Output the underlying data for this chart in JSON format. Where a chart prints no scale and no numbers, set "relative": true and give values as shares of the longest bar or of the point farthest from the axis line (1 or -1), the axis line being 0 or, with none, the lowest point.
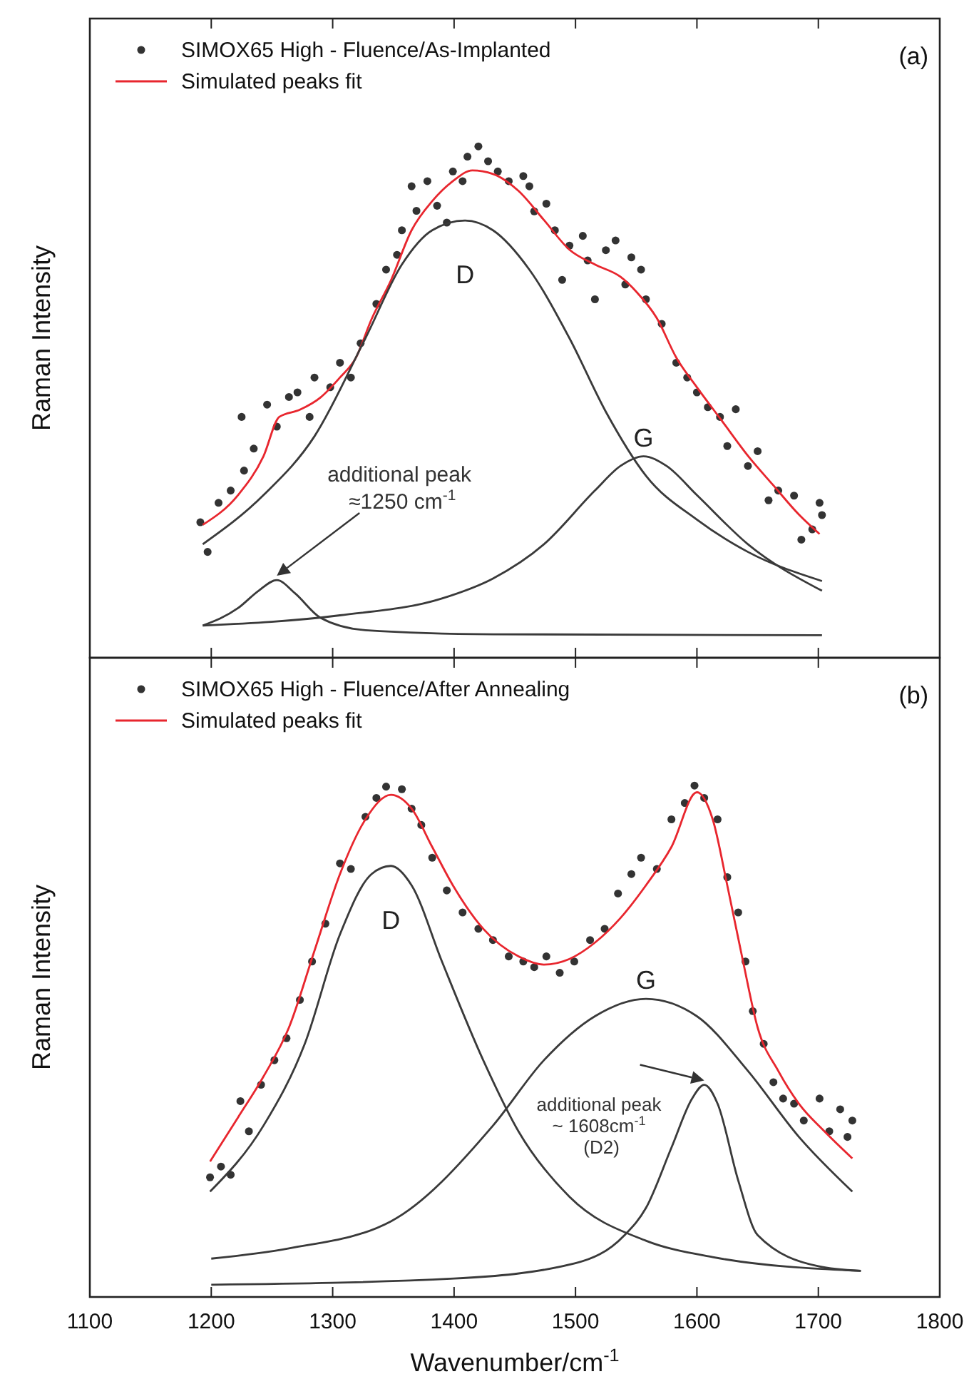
{
  "chart_data": [
    {
      "type": "scatter",
      "ylabel": "Raman Intensity",
      "xlim": [
        1100,
        1800
      ],
      "xticks": [
        1100,
        1200,
        1300,
        1400,
        1500,
        1600,
        1700,
        1800
      ],
      "tick_labels": false,
      "relative": true,
      "legend": "top left",
      "annotations": [
        "(a)",
        "additional peak\n≈1250 cm$^{-1}$"
      ],
      "series": [
        {
          "name": "SIMOX65 High - Fluence/As-Implanted",
          "color": "#333333",
          "marker": "circle",
          "x": [
            1191,
            1197,
            1206,
            1216,
            1225,
            1227,
            1235,
            1246,
            1254,
            1264,
            1271,
            1281,
            1285,
            1298,
            1306,
            1315,
            1323,
            1336,
            1344,
            1353,
            1357,
            1365,
            1369,
            1378,
            1386,
            1394,
            1399,
            1407,
            1411,
            1420,
            1428,
            1436,
            1445,
            1457,
            1462,
            1466,
            1476,
            1483,
            1489,
            1495,
            1506,
            1510,
            1516,
            1525,
            1533,
            1541,
            1546,
            1554,
            1558,
            1571,
            1583,
            1592,
            1600,
            1609,
            1619,
            1625,
            1632,
            1642,
            1650,
            1659,
            1667,
            1680,
            1686,
            1695,
            1701,
            1703
          ],
          "values": [
            0.265,
            0.207,
            0.303,
            0.327,
            0.471,
            0.366,
            0.409,
            0.495,
            0.452,
            0.51,
            0.519,
            0.471,
            0.548,
            0.529,
            0.577,
            0.548,
            0.615,
            0.692,
            0.759,
            0.788,
            0.836,
            0.922,
            0.874,
            0.932,
            0.884,
            0.851,
            0.951,
            0.932,
            0.98,
            1,
            0.971,
            0.951,
            0.932,
            0.942,
            0.922,
            0.873,
            0.888,
            0.836,
            0.739,
            0.806,
            0.825,
            0.777,
            0.701,
            0.797,
            0.816,
            0.73,
            0.783,
            0.759,
            0.701,
            0.653,
            0.577,
            0.548,
            0.519,
            0.49,
            0.471,
            0.414,
            0.486,
            0.375,
            0.404,
            0.308,
            0.327,
            0.317,
            0.231,
            0.251,
            0.303,
            0.279
          ]
        },
        {
          "type": "line",
          "name": "Simulated peaks fit",
          "color": "#e8262e",
          "x": [
            1193,
            1222,
            1243,
            1256,
            1273,
            1290,
            1306,
            1319,
            1332,
            1348,
            1365,
            1382,
            1399,
            1415,
            1432,
            1453,
            1474,
            1495,
            1516,
            1537,
            1550,
            1567,
            1583,
            1600,
            1621,
            1642,
            1663,
            1684,
            1701
          ],
          "values": [
            0.26,
            0.318,
            0.394,
            0.471,
            0.485,
            0.509,
            0.548,
            0.586,
            0.662,
            0.738,
            0.836,
            0.893,
            0.932,
            0.953,
            0.946,
            0.913,
            0.856,
            0.798,
            0.769,
            0.745,
            0.716,
            0.664,
            0.587,
            0.529,
            0.462,
            0.395,
            0.337,
            0.28,
            0.242
          ]
        },
        {
          "type": "line",
          "name": "D",
          "color": "#3a3a3a",
          "x": [
            1193,
            1243,
            1285,
            1327,
            1357,
            1382,
            1409,
            1432,
            1462,
            1495,
            1525,
            1558,
            1600,
            1642,
            1703
          ],
          "values": [
            0.222,
            0.318,
            0.433,
            0.625,
            0.769,
            0.836,
            0.855,
            0.836,
            0.759,
            0.625,
            0.481,
            0.356,
            0.27,
            0.207,
            0.15
          ]
        },
        {
          "type": "line",
          "name": "G",
          "color": "#3a3a3a",
          "x": [
            1193,
            1306,
            1390,
            1432,
            1474,
            1516,
            1537,
            1556,
            1575,
            1600,
            1642,
            1703
          ],
          "values": [
            0.063,
            0.083,
            0.116,
            0.155,
            0.222,
            0.327,
            0.375,
            0.394,
            0.375,
            0.318,
            0.222,
            0.131
          ]
        },
        {
          "type": "line",
          "color": "#3a3a3a",
          "x": [
            1193,
            1222,
            1239,
            1254,
            1269,
            1290,
            1327,
            1432,
            1703
          ],
          "values": [
            0.063,
            0.097,
            0.131,
            0.152,
            0.126,
            0.078,
            0.054,
            0.046,
            0.044
          ]
        }
      ]
    },
    {
      "type": "scatter",
      "xlabel": "Wavenumber/cm$^{-1}$",
      "ylabel": "Raman Intensity",
      "xlim": [
        1100,
        1800
      ],
      "xticks": [
        1100,
        1200,
        1300,
        1400,
        1500,
        1600,
        1700,
        1800
      ],
      "tick_labels": "x",
      "relative": true,
      "legend": "top left",
      "annotations": [
        "(b)",
        "additional peak\n~ 1608cm$^{-1}$\n(D2)"
      ],
      "series": [
        {
          "name": "SIMOX65 High - Fluence/After Annealing",
          "color": "#333333",
          "marker": "circle",
          "x": [
            1199,
            1208,
            1216,
            1224,
            1231,
            1241,
            1252,
            1262,
            1273,
            1283,
            1294,
            1306,
            1315,
            1327,
            1336,
            1344,
            1357,
            1365,
            1373,
            1382,
            1394,
            1407,
            1420,
            1432,
            1445,
            1457,
            1466,
            1476,
            1487,
            1499,
            1512,
            1524,
            1535,
            1546,
            1554,
            1567,
            1579,
            1590,
            1598,
            1606,
            1617,
            1625,
            1634,
            1640,
            1646,
            1655,
            1663,
            1671,
            1680,
            1688,
            1701,
            1709,
            1718,
            1724,
            1728
          ],
          "values": [
            0.234,
            0.255,
            0.239,
            0.383,
            0.324,
            0.415,
            0.463,
            0.506,
            0.581,
            0.656,
            0.73,
            0.848,
            0.837,
            0.939,
            0.976,
            0.998,
            0.993,
            0.955,
            0.923,
            0.859,
            0.795,
            0.752,
            0.72,
            0.698,
            0.666,
            0.656,
            0.645,
            0.666,
            0.634,
            0.656,
            0.698,
            0.72,
            0.789,
            0.827,
            0.859,
            0.837,
            0.934,
            0.966,
            1,
            0.976,
            0.934,
            0.821,
            0.752,
            0.656,
            0.559,
            0.495,
            0.42,
            0.388,
            0.378,
            0.345,
            0.388,
            0.324,
            0.367,
            0.313,
            0.345
          ]
        },
        {
          "type": "line",
          "name": "Simulated peaks fit",
          "color": "#e8262e",
          "x": [
            1199,
            1222,
            1243,
            1264,
            1285,
            1306,
            1327,
            1348,
            1365,
            1382,
            1399,
            1424,
            1453,
            1474,
            1495,
            1516,
            1537,
            1558,
            1579,
            1600,
            1613,
            1625,
            1638,
            1650,
            1667,
            1684,
            1705,
            1728
          ],
          "values": [
            0.265,
            0.351,
            0.431,
            0.527,
            0.677,
            0.827,
            0.934,
            0.982,
            0.955,
            0.88,
            0.805,
            0.72,
            0.666,
            0.65,
            0.661,
            0.693,
            0.741,
            0.805,
            0.88,
            0.987,
            0.934,
            0.805,
            0.656,
            0.527,
            0.442,
            0.378,
            0.324,
            0.271
          ]
        },
        {
          "type": "line",
          "name": "D",
          "color": "#3a3a3a",
          "x": [
            1199,
            1243,
            1277,
            1306,
            1332,
            1348,
            1365,
            1390,
            1424,
            1453,
            1495,
            1558,
            1613,
            1735
          ],
          "values": [
            0.206,
            0.335,
            0.495,
            0.709,
            0.827,
            0.843,
            0.805,
            0.656,
            0.463,
            0.324,
            0.196,
            0.11,
            0.078,
            0.051
          ]
        },
        {
          "type": "line",
          "name": "G",
          "color": "#3a3a3a",
          "x": [
            1200,
            1264,
            1348,
            1432,
            1474,
            1516,
            1558,
            1600,
            1642,
            1684,
            1728
          ],
          "values": [
            0.075,
            0.095,
            0.148,
            0.335,
            0.463,
            0.549,
            0.583,
            0.549,
            0.442,
            0.313,
            0.206
          ]
        },
        {
          "type": "line",
          "color": "#3a3a3a",
          "x": [
            1200,
            1400,
            1500,
            1540,
            1558,
            1579,
            1596,
            1606,
            1617,
            1634,
            1650,
            1700,
            1735
          ],
          "values": [
            0.024,
            0.036,
            0.066,
            0.12,
            0.174,
            0.292,
            0.388,
            0.415,
            0.378,
            0.228,
            0.121,
            0.06,
            0.051
          ]
        }
      ]
    }
  ]
}
